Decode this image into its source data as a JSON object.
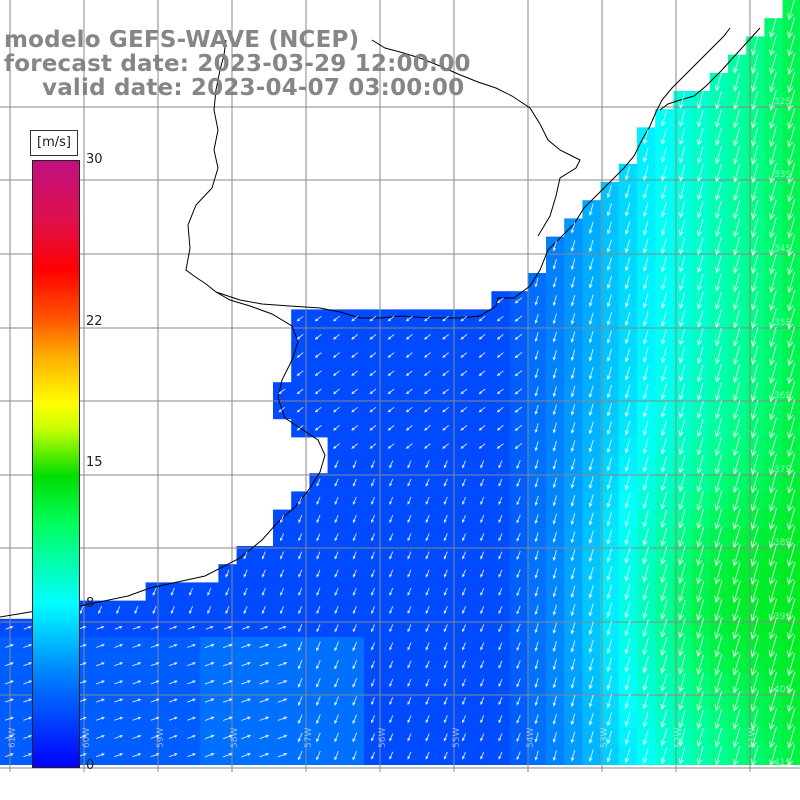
{
  "title": {
    "line1": "modelo GEFS-WAVE (NCEP)",
    "line2": "forecast date: 2023-03-29 12:00:00",
    "line3": "valid date: 2023-04-07 03:00:00"
  },
  "colorbar": {
    "unit": "[m/s]",
    "min": 0,
    "max": 30,
    "ticks": [
      {
        "value": 30,
        "label": "30"
      },
      {
        "value": 22,
        "label": "22"
      },
      {
        "value": 15,
        "label": "15"
      },
      {
        "value": 8,
        "label": "8"
      },
      {
        "value": 0,
        "label": "0"
      }
    ]
  },
  "lat_labels": [
    "32S",
    "33S",
    "34S",
    "35S",
    "36S",
    "37S",
    "38S",
    "39S",
    "40S",
    "41S"
  ],
  "lon_labels": [
    "61W",
    "60W",
    "59W",
    "58W",
    "57W",
    "56W",
    "55W",
    "54W",
    "53W",
    "52W",
    "51W"
  ],
  "colors": {
    "land": "#ffffff",
    "coastline": "#000000",
    "grid": "#888888",
    "arrow": "#ffffff"
  }
}
